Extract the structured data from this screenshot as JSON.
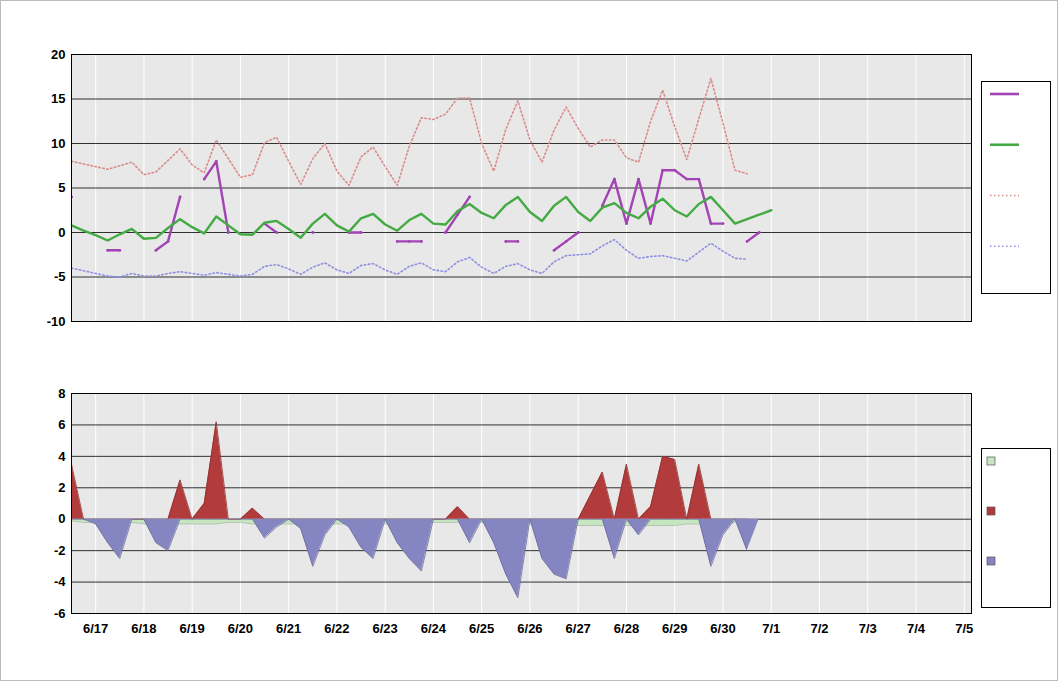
{
  "chart_data": [
    {
      "type": "line",
      "x": [
        16.5,
        16.75,
        17,
        17.25,
        17.5,
        17.75,
        18,
        18.25,
        18.5,
        18.75,
        19,
        19.25,
        19.5,
        19.75,
        20,
        20.25,
        20.5,
        20.75,
        21,
        21.25,
        21.5,
        21.75,
        22,
        22.25,
        22.5,
        22.75,
        23,
        23.25,
        23.5,
        23.75,
        24,
        24.25,
        24.5,
        24.75,
        25,
        25.25,
        25.5,
        25.75,
        26,
        26.25,
        26.5,
        26.75,
        27,
        27.25,
        27.5,
        27.75,
        28,
        28.25,
        28.5,
        28.75,
        29,
        29.25,
        29.5,
        29.75,
        30,
        30.25,
        30.5,
        30.75,
        31
      ],
      "xlim": [
        16.5,
        35.15
      ],
      "xticks": [
        {
          "value": 17,
          "label": "6/17"
        },
        {
          "value": 18,
          "label": "6/18"
        },
        {
          "value": 19,
          "label": "6/19"
        },
        {
          "value": 20,
          "label": "6/20"
        },
        {
          "value": 21,
          "label": "6/21"
        },
        {
          "value": 22,
          "label": "6/22"
        },
        {
          "value": 23,
          "label": "6/23"
        },
        {
          "value": 24,
          "label": "6/24"
        },
        {
          "value": 25,
          "label": "6/25"
        },
        {
          "value": 26,
          "label": "6/26"
        },
        {
          "value": 27,
          "label": "6/27"
        },
        {
          "value": 28,
          "label": "6/28"
        },
        {
          "value": 29,
          "label": "6/29"
        },
        {
          "value": 30,
          "label": "6/30"
        },
        {
          "value": 31,
          "label": "7/1"
        },
        {
          "value": 32,
          "label": "7/2"
        },
        {
          "value": 33,
          "label": "7/3"
        },
        {
          "value": 34,
          "label": "7/4"
        },
        {
          "value": 35,
          "label": "7/5"
        }
      ],
      "ylim": [
        -10,
        20
      ],
      "yticks": [
        -10,
        -5,
        0,
        5,
        10,
        15,
        20
      ],
      "grid": true,
      "tick_labels": "y",
      "legend": "right",
      "series": [
        {
          "color": "#a244b5",
          "line_style": "solid",
          "marker": "dot",
          "values": [
            4,
            null,
            null,
            -2,
            -2,
            null,
            null,
            -2,
            -1,
            4,
            null,
            6,
            8,
            0,
            null,
            null,
            1,
            0,
            null,
            null,
            0,
            null,
            null,
            0,
            0,
            null,
            null,
            -1,
            -1,
            -1,
            null,
            0,
            2,
            4,
            null,
            null,
            -1,
            -1,
            null,
            null,
            -2,
            -1,
            0,
            null,
            3,
            6,
            1,
            6,
            1,
            7,
            7,
            6,
            6,
            1,
            1,
            null,
            -1,
            0,
            null
          ]
        },
        {
          "color": "#44aa44",
          "line_style": "solid",
          "values": [
            0.8,
            0.2,
            -0.3,
            -0.9,
            -0.2,
            0.4,
            -0.7,
            -0.6,
            0.5,
            1.5,
            0.6,
            -0.1,
            1.8,
            0.8,
            -0.2,
            -0.25,
            1.1,
            1.3,
            0.4,
            -0.6,
            1.0,
            2.1,
            0.8,
            0.1,
            1.6,
            2.1,
            0.9,
            0.2,
            1.4,
            2.1,
            1.0,
            0.9,
            2.4,
            3.2,
            2.2,
            1.6,
            3.1,
            4.0,
            2.3,
            1.3,
            3.0,
            4.0,
            2.3,
            1.3,
            2.8,
            3.3,
            2.2,
            1.6,
            2.9,
            3.8,
            2.5,
            1.8,
            3.2,
            4.0,
            2.5,
            1.0,
            1.5,
            2.0,
            2.5
          ]
        },
        {
          "color": "#d98c8c",
          "line_style": "dotted",
          "values": [
            8,
            7.7,
            7.4,
            7.1,
            7.5,
            7.9,
            6.5,
            6.8,
            8.1,
            9.4,
            7.6,
            6.7,
            10.4,
            8.3,
            6.2,
            6.5,
            10.1,
            10.7,
            8.0,
            5.4,
            8.3,
            10.0,
            6.9,
            5.3,
            8.5,
            9.6,
            7.4,
            5.3,
            9.7,
            12.9,
            12.7,
            13.3,
            15.1,
            15.1,
            10.0,
            6.9,
            11.6,
            14.8,
            10.4,
            7.9,
            11.5,
            14.1,
            11.7,
            9.6,
            10.4,
            10.4,
            8.4,
            7.9,
            12.5,
            16.0,
            11.9,
            8.2,
            12.8,
            17.3,
            12.3,
            7.0,
            6.6,
            null,
            null
          ]
        },
        {
          "color": "#8f8fe0",
          "line_style": "dotted",
          "values": [
            -4.0,
            -4.3,
            -4.6,
            -4.9,
            -5.0,
            -4.6,
            -4.9,
            -4.9,
            -4.6,
            -4.4,
            -4.6,
            -4.8,
            -4.5,
            -4.7,
            -4.9,
            -4.7,
            -3.8,
            -3.6,
            -4.1,
            -4.7,
            -3.9,
            -3.4,
            -4.2,
            -4.6,
            -3.7,
            -3.5,
            -4.2,
            -4.7,
            -3.8,
            -3.4,
            -4.2,
            -4.4,
            -3.3,
            -2.8,
            -3.9,
            -4.6,
            -3.8,
            -3.5,
            -4.2,
            -4.6,
            -3.3,
            -2.6,
            -2.5,
            -2.4,
            -1.5,
            -0.8,
            -2.0,
            -2.9,
            -2.7,
            -2.6,
            -2.9,
            -3.2,
            -2.2,
            -1.2,
            -2.1,
            -2.9,
            -3.0,
            null,
            null
          ]
        }
      ]
    },
    {
      "type": "area",
      "x": [
        16.5,
        16.75,
        17,
        17.25,
        17.5,
        17.75,
        18,
        18.25,
        18.5,
        18.75,
        19,
        19.25,
        19.5,
        19.75,
        20,
        20.25,
        20.5,
        20.75,
        21,
        21.25,
        21.5,
        21.75,
        22,
        22.25,
        22.5,
        22.75,
        23,
        23.25,
        23.5,
        23.75,
        24,
        24.25,
        24.5,
        24.75,
        25,
        25.25,
        25.5,
        25.75,
        26,
        26.25,
        26.5,
        26.75,
        27,
        27.25,
        27.5,
        27.75,
        28,
        28.25,
        28.5,
        28.75,
        29,
        29.25,
        29.5,
        29.75,
        30,
        30.25,
        30.5,
        30.75,
        31
      ],
      "xlim": [
        16.5,
        35.15
      ],
      "xticks": [
        {
          "value": 17,
          "label": "6/17"
        },
        {
          "value": 18,
          "label": "6/18"
        },
        {
          "value": 19,
          "label": "6/19"
        },
        {
          "value": 20,
          "label": "6/20"
        },
        {
          "value": 21,
          "label": "6/21"
        },
        {
          "value": 22,
          "label": "6/22"
        },
        {
          "value": 23,
          "label": "6/23"
        },
        {
          "value": 24,
          "label": "6/24"
        },
        {
          "value": 25,
          "label": "6/25"
        },
        {
          "value": 26,
          "label": "6/26"
        },
        {
          "value": 27,
          "label": "6/27"
        },
        {
          "value": 28,
          "label": "6/28"
        },
        {
          "value": 29,
          "label": "6/29"
        },
        {
          "value": 30,
          "label": "6/30"
        },
        {
          "value": 31,
          "label": "7/1"
        },
        {
          "value": 32,
          "label": "7/2"
        },
        {
          "value": 33,
          "label": "7/3"
        },
        {
          "value": 34,
          "label": "7/4"
        },
        {
          "value": 35,
          "label": "7/5"
        }
      ],
      "ylim": [
        -6,
        8
      ],
      "yticks": [
        -6,
        -4,
        -2,
        0,
        2,
        4,
        6,
        8
      ],
      "grid": true,
      "legend": "right",
      "series": [
        {
          "color": "#c6e6bf",
          "values": [
            -0.1,
            -0.2,
            -0.2,
            -0.2,
            -0.2,
            -0.2,
            -0.3,
            -0.3,
            -0.3,
            -0.3,
            -0.3,
            -0.3,
            -0.3,
            -0.2,
            -0.2,
            -0.3,
            -0.3,
            -0.3,
            -0.3,
            -0.3,
            -0.3,
            -0.3,
            -0.3,
            -0.3,
            -0.3,
            -0.3,
            -0.3,
            -0.3,
            -0.3,
            -0.3,
            -0.2,
            -0.2,
            -0.2,
            -0.2,
            -0.2,
            -0.3,
            -0.3,
            -0.3,
            -0.3,
            -0.4,
            -0.4,
            -0.4,
            -0.4,
            -0.4,
            -0.4,
            -0.4,
            -0.4,
            -0.4,
            -0.4,
            -0.4,
            -0.4,
            -0.3,
            -0.3,
            -0.3,
            -0.2,
            -0.2,
            -0.2,
            null,
            null
          ]
        },
        {
          "color": "#b23c3c",
          "values": [
            3.5,
            0,
            0,
            0,
            0,
            0,
            0,
            0,
            0,
            2.5,
            0,
            1.0,
            6.2,
            0,
            0,
            0.7,
            0,
            0,
            0,
            0,
            0,
            0,
            0,
            0,
            0,
            0,
            0,
            0,
            0,
            0,
            0,
            0,
            0.8,
            0,
            0,
            0,
            0,
            0,
            0,
            0,
            0,
            0,
            0,
            1.5,
            3.0,
            0,
            3.5,
            0,
            0.8,
            4.0,
            3.8,
            0,
            3.5,
            0,
            0,
            0,
            0,
            null,
            null
          ]
        },
        {
          "color": "#8585c2",
          "values": [
            0,
            0,
            -0.3,
            -1.5,
            -2.5,
            0,
            0,
            -1.5,
            -2.0,
            0,
            0,
            0,
            0,
            0,
            0,
            0,
            -1.2,
            -0.5,
            0,
            -0.6,
            -3.0,
            -1.0,
            0,
            -0.5,
            -1.8,
            -2.5,
            0,
            -1.5,
            -2.5,
            -3.3,
            0,
            0,
            0,
            -1.5,
            0,
            -1.5,
            -3.5,
            -5.0,
            0,
            -2.5,
            -3.5,
            -3.8,
            0,
            0,
            0,
            -2.5,
            0,
            -1.0,
            0,
            0,
            0,
            0,
            0,
            -3.0,
            -1.0,
            0,
            -2.0,
            null,
            null
          ]
        }
      ]
    }
  ]
}
